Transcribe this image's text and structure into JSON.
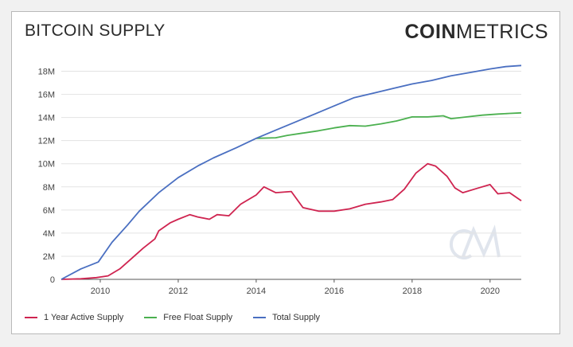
{
  "header": {
    "title": "BITCOIN SUPPLY",
    "brand_bold": "COIN",
    "brand_light": "METRICS"
  },
  "chart_data": {
    "type": "line",
    "title": "BITCOIN SUPPLY",
    "xlabel": "",
    "ylabel": "",
    "xlim": [
      2009.0,
      2020.8
    ],
    "ylim": [
      0,
      19000000
    ],
    "x_ticks": [
      2010,
      2012,
      2014,
      2016,
      2018,
      2020
    ],
    "y_ticks": [
      0,
      2000000,
      4000000,
      6000000,
      8000000,
      10000000,
      12000000,
      14000000,
      16000000,
      18000000
    ],
    "y_tick_labels": [
      "0",
      "2M",
      "4M",
      "6M",
      "8M",
      "10M",
      "12M",
      "14M",
      "16M",
      "18M"
    ],
    "grid": "horizontal",
    "legend_position": "bottom-left",
    "series": [
      {
        "name": "1 Year Active Supply",
        "color": "#cf2450",
        "x": [
          2009.0,
          2009.5,
          2009.9,
          2010.2,
          2010.5,
          2010.8,
          2011.1,
          2011.4,
          2011.5,
          2011.8,
          2012.0,
          2012.3,
          2012.5,
          2012.8,
          2013.0,
          2013.3,
          2013.6,
          2014.0,
          2014.2,
          2014.5,
          2014.9,
          2015.2,
          2015.6,
          2016.0,
          2016.4,
          2016.8,
          2017.2,
          2017.5,
          2017.8,
          2018.1,
          2018.4,
          2018.6,
          2018.9,
          2019.1,
          2019.3,
          2019.7,
          2020.0,
          2020.2,
          2020.5,
          2020.8
        ],
        "values": [
          0,
          50000,
          150000,
          300000,
          900000,
          1800000,
          2700000,
          3500000,
          4200000,
          4900000,
          5200000,
          5600000,
          5400000,
          5200000,
          5600000,
          5500000,
          6500000,
          7300000,
          8000000,
          7500000,
          7600000,
          6200000,
          5900000,
          5900000,
          6100000,
          6500000,
          6700000,
          6900000,
          7800000,
          9200000,
          10000000,
          9800000,
          8900000,
          7900000,
          7500000,
          7900000,
          8200000,
          7400000,
          7500000,
          6800000
        ]
      },
      {
        "name": "Free Float Supply",
        "color": "#4bb04f",
        "x": [
          2014.0,
          2014.5,
          2014.8,
          2015.2,
          2015.6,
          2016.0,
          2016.4,
          2016.8,
          2017.2,
          2017.6,
          2018.0,
          2018.4,
          2018.8,
          2019.0,
          2019.4,
          2019.8,
          2020.2,
          2020.5,
          2020.8
        ],
        "values": [
          12200000,
          12250000,
          12450000,
          12650000,
          12850000,
          13100000,
          13300000,
          13250000,
          13450000,
          13700000,
          14050000,
          14050000,
          14150000,
          13900000,
          14050000,
          14200000,
          14300000,
          14350000,
          14400000
        ]
      },
      {
        "name": "Total Supply",
        "color": "#4a6fc1",
        "x": [
          2009.0,
          2009.5,
          2009.95,
          2010.3,
          2010.7,
          2011.0,
          2011.5,
          2012.0,
          2012.5,
          2012.9,
          2013.5,
          2014.0,
          2014.5,
          2015.0,
          2015.5,
          2016.0,
          2016.5,
          2017.0,
          2017.5,
          2018.0,
          2018.5,
          2019.0,
          2019.5,
          2020.0,
          2020.4,
          2020.8
        ],
        "values": [
          0,
          900000,
          1500000,
          3200000,
          4700000,
          5900000,
          7500000,
          8800000,
          9800000,
          10500000,
          11400000,
          12200000,
          12900000,
          13600000,
          14300000,
          15000000,
          15700000,
          16100000,
          16500000,
          16900000,
          17200000,
          17600000,
          17900000,
          18200000,
          18400000,
          18500000
        ]
      }
    ]
  }
}
